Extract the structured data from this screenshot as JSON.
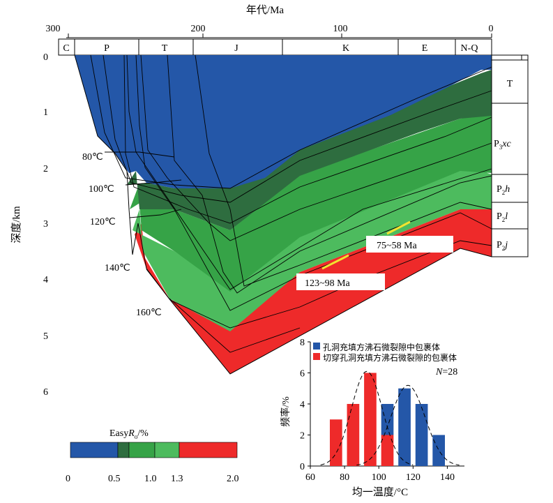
{
  "top_axis": {
    "title": "年代/Ma",
    "ticks": [
      "300",
      "200",
      "100",
      "0"
    ]
  },
  "left_axis": {
    "title": "深度/km",
    "ticks": [
      "0",
      "1",
      "2",
      "3",
      "4",
      "5",
      "6"
    ]
  },
  "periods": [
    "C",
    "P",
    "T",
    "J",
    "K",
    "E",
    "N-Q"
  ],
  "formations": {
    "T": "T",
    "P3xc_base": "P",
    "P3xc_sub": "3",
    "P3xc_tail": "xc",
    "P2h_base": "P",
    "P2h_sub": "2",
    "P2h_tail": "h",
    "P2l_base": "P",
    "P2l_sub": "2",
    "P2l_tail": "l",
    "P2j_base": "P",
    "P2j_sub": "2",
    "P2j_tail": "j"
  },
  "isotherms": [
    "80℃",
    "100℃",
    "120℃",
    "140℃",
    "160℃"
  ],
  "callouts": [
    "75~58 Ma",
    "123~98 Ma"
  ],
  "colors": {
    "blue": "#2457a8",
    "dark_green": "#2e6d3f",
    "green": "#36a347",
    "light_green": "#4dbb5e",
    "red": "#ee2a2a",
    "yellow": "#f2e330"
  },
  "ro_legend": {
    "title_base": "Easy",
    "title_ital": "R",
    "title_sub": "o",
    "title_tail": "/%",
    "labels": [
      "0",
      "0.5",
      "1.0",
      "1.3",
      "2.0"
    ]
  },
  "histogram": {
    "legend_blue": "孔洞充填方沸石微裂隙中包裹体",
    "legend_red": "切穿孔洞充填方沸石微裂隙的包裹体",
    "n_label": "N",
    "n_value": "=28",
    "ylabel": "频率/%",
    "xlabel": "均一温度/°C",
    "x_ticks": [
      "60",
      "80",
      "100",
      "120",
      "140"
    ],
    "y_ticks": [
      "0",
      "2",
      "4",
      "6",
      "8"
    ]
  },
  "chart_data": {
    "type": "bar",
    "xlabel": "均一温度/°C",
    "ylabel": "频率/%",
    "xlim": [
      60,
      150
    ],
    "ylim": [
      0,
      8
    ],
    "bins": [
      {
        "x_center": 75,
        "red": 3,
        "blue": 0
      },
      {
        "x_center": 85,
        "red": 4,
        "blue": 0
      },
      {
        "x_center": 95,
        "red": 6,
        "blue": 0
      },
      {
        "x_center": 105,
        "red": 2,
        "blue": 2
      },
      {
        "x_center": 115,
        "red": 0,
        "blue": 5
      },
      {
        "x_center": 125,
        "red": 0,
        "blue": 4
      },
      {
        "x_center": 135,
        "red": 0,
        "blue": 2
      }
    ],
    "series": [
      {
        "name": "孔洞充填方沸石微裂隙中包裹体",
        "color": "#2457a8"
      },
      {
        "name": "切穿孔洞充填方沸石微裂隙的包裹体",
        "color": "#ee2a2a"
      }
    ]
  }
}
